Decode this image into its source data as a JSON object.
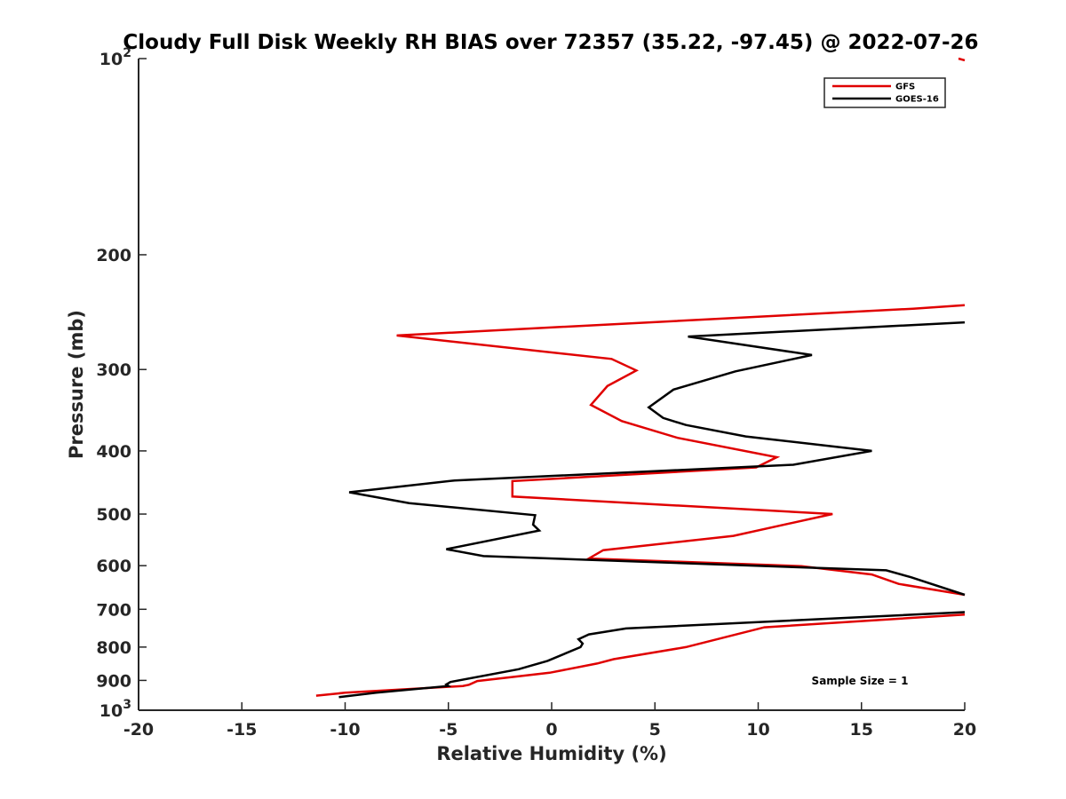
{
  "chart_data": {
    "type": "line",
    "title": "Cloudy Full Disk Weekly RH BIAS over 72357 (35.22, -97.45) @ 2022-07-26",
    "xlabel": "Relative Humidity (%)",
    "ylabel": "Pressure (mb)",
    "xlim": [
      -20,
      20
    ],
    "ylim": [
      100,
      1000
    ],
    "y_scale": "log",
    "y_reversed": true,
    "grid": false,
    "legend_position": "top-right",
    "x_ticks": [
      "-20",
      "-15",
      "-10",
      "-5",
      "0",
      "5",
      "10",
      "15",
      "20"
    ],
    "y_ticks": [
      {
        "value": 100,
        "base": "10",
        "exp": "2"
      },
      {
        "value": 200,
        "label": "200"
      },
      {
        "value": 300,
        "label": "300"
      },
      {
        "value": 400,
        "label": "400"
      },
      {
        "value": 500,
        "label": "500"
      },
      {
        "value": 600,
        "label": "600"
      },
      {
        "value": 700,
        "label": "700"
      },
      {
        "value": 800,
        "label": "800"
      },
      {
        "value": 900,
        "label": "900"
      },
      {
        "value": 1000,
        "base": "10",
        "exp": "3"
      }
    ],
    "annotation": "Sample Size = 1",
    "series": [
      {
        "name": "GFS",
        "color": "#e00000",
        "segments": [
          [
            [
              19.7,
              100
            ],
            [
              20,
              100.6
            ]
          ],
          [
            [
              20,
              239
            ],
            [
              17.5,
              242
            ],
            [
              -7.5,
              266
            ],
            [
              2.9,
              289
            ],
            [
              4.1,
              301
            ],
            [
              2.7,
              318
            ],
            [
              1.9,
              340
            ],
            [
              3.4,
              360
            ],
            [
              6.1,
              382
            ],
            [
              10.9,
              409
            ],
            [
              9.9,
              424
            ],
            [
              -1.9,
              445
            ],
            [
              -1.9,
              470
            ],
            [
              13.6,
              500
            ],
            [
              8.8,
              540
            ],
            [
              2.5,
              568
            ],
            [
              1.8,
              585
            ],
            [
              12.1,
              601
            ],
            [
              15.5,
              619
            ],
            [
              16.8,
              640
            ],
            [
              20,
              665
            ]
          ],
          [
            [
              20,
              713
            ],
            [
              10.3,
              746
            ],
            [
              6.5,
              800
            ],
            [
              3,
              835
            ],
            [
              2.2,
              848
            ],
            [
              -0.1,
              876
            ],
            [
              -3.6,
              902
            ],
            [
              -4,
              914
            ],
            [
              -4.3,
              918
            ],
            [
              -10,
              940
            ],
            [
              -11.4,
              950
            ]
          ]
        ]
      },
      {
        "name": "GOES-16",
        "color": "#000000",
        "segments": [
          [
            [
              20,
              254
            ],
            [
              6.6,
              267
            ],
            [
              12.6,
              285
            ],
            [
              8.9,
              302
            ],
            [
              5.9,
              322
            ],
            [
              4.7,
              343
            ],
            [
              5.4,
              356
            ],
            [
              6.5,
              365
            ],
            [
              9.4,
              380
            ],
            [
              15.5,
              400
            ],
            [
              11.7,
              420
            ],
            [
              -4.7,
              444
            ],
            [
              -9.8,
              463
            ],
            [
              -6.9,
              481
            ],
            [
              -0.8,
              502
            ],
            [
              -0.9,
              519
            ],
            [
              -0.6,
              530
            ],
            [
              -5.1,
              566
            ],
            [
              -3.3,
              580
            ],
            [
              16.2,
              610
            ],
            [
              17.4,
              625
            ],
            [
              20,
              665
            ]
          ],
          [
            [
              20,
              707
            ],
            [
              3.6,
              749
            ],
            [
              1.8,
              765
            ],
            [
              1.3,
              778
            ],
            [
              1.5,
              790
            ],
            [
              1.4,
              800
            ],
            [
              -0.2,
              840
            ],
            [
              -1.6,
              865
            ],
            [
              -4.9,
              905
            ],
            [
              -5.1,
              913
            ],
            [
              -5,
              918
            ],
            [
              -8.5,
              940
            ],
            [
              -10.3,
              955
            ]
          ]
        ]
      }
    ]
  }
}
